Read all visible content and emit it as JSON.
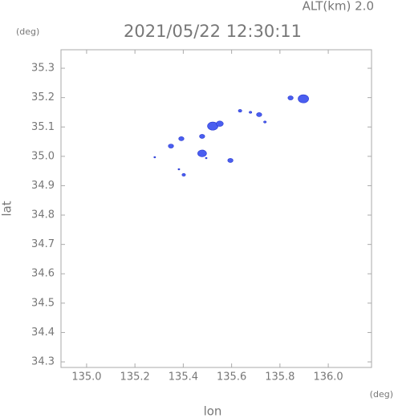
{
  "chart_data": {
    "type": "scatter",
    "title": "2021/05/22 12:30:11",
    "subtitle": "ALT(km) 2.0",
    "y_unit": "(deg)",
    "x_unit": "(deg)",
    "x_label": "lon",
    "y_label": "lat",
    "color": "#4a5ef0",
    "x": [
      135.897,
      135.844,
      135.522,
      135.551,
      135.478,
      135.392,
      135.349,
      135.478,
      135.595,
      135.402,
      135.635,
      135.714,
      135.738,
      135.678,
      135.282,
      135.382,
      135.495
    ],
    "values": [
      35.196,
      35.199,
      35.103,
      35.111,
      35.068,
      35.06,
      35.035,
      35.01,
      34.986,
      34.937,
      35.155,
      35.142,
      35.117,
      35.15,
      34.997,
      34.956,
      34.994
    ],
    "sizes": [
      6,
      3,
      6,
      4,
      3,
      3,
      3,
      5,
      3,
      2,
      2,
      3,
      1.5,
      1.5,
      1,
      1,
      1
    ],
    "xlim": [
      134.894,
      136.179
    ],
    "ylim": [
      34.281,
      35.363
    ],
    "xticks": [
      {
        "value": 135,
        "label": "135.0"
      },
      135.2,
      135.4,
      135.6,
      135.8,
      {
        "value": 136,
        "label": "136.0"
      }
    ],
    "yticks": [
      34.3,
      34.4,
      34.5,
      34.6,
      34.7,
      34.8,
      34.9,
      {
        "value": 35,
        "label": "35.0"
      },
      35.1,
      35.2,
      35.3
    ]
  }
}
